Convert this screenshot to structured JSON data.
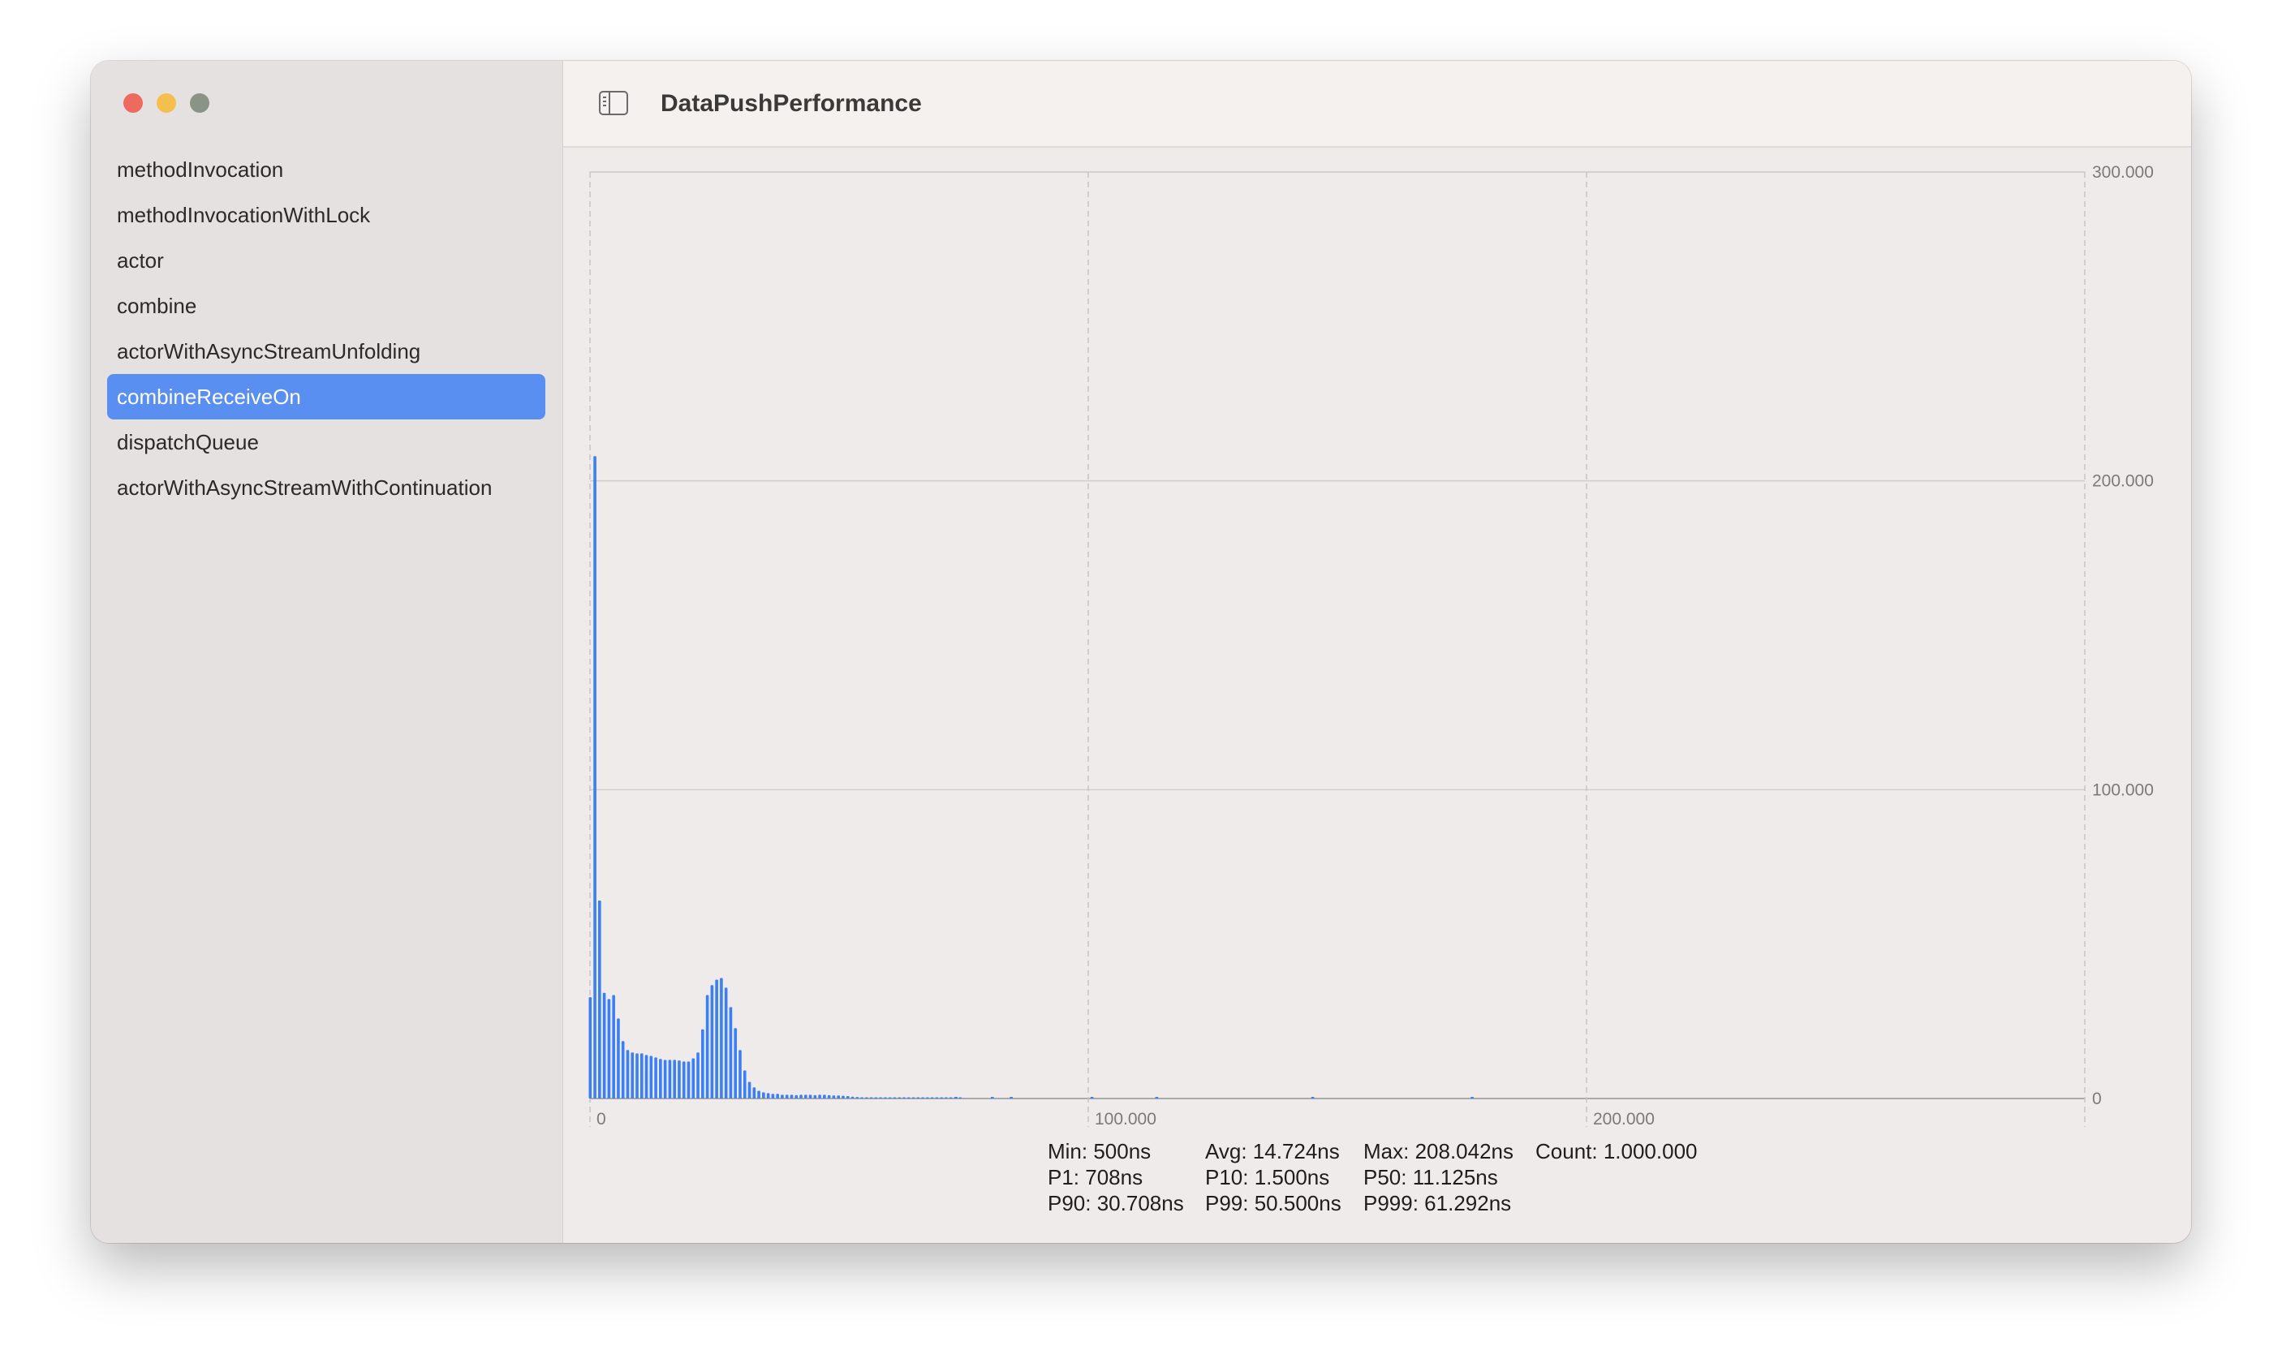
{
  "window": {
    "title": "DataPushPerformance",
    "toggle_icon": "sidebar-toggle-icon"
  },
  "sidebar": {
    "items": [
      {
        "label": "methodInvocation",
        "selected": false
      },
      {
        "label": "methodInvocationWithLock",
        "selected": false
      },
      {
        "label": "actor",
        "selected": false
      },
      {
        "label": "combine",
        "selected": false
      },
      {
        "label": "actorWithAsyncStreamUnfolding",
        "selected": false
      },
      {
        "label": "combineReceiveOn",
        "selected": true
      },
      {
        "label": "dispatchQueue",
        "selected": false
      },
      {
        "label": "actorWithAsyncStreamWithContinuation",
        "selected": false
      }
    ],
    "selection_color": "#5a8ff2"
  },
  "stats": {
    "min": "Min: 500ns",
    "avg": "Avg: 14.724ns",
    "max": "Max: 208.042ns",
    "count": "Count: 1.000.000",
    "p1": "P1: 708ns",
    "p10": "P10: 1.500ns",
    "p50": "P50: 11.125ns",
    "p90": "P90: 30.708ns",
    "p99": "P99: 50.500ns",
    "p999": "P999: 61.292ns"
  },
  "chart_data": {
    "type": "bar",
    "bar_color": "#3b7ff5",
    "xlim": [
      0,
      300000
    ],
    "ylim": [
      0,
      300000
    ],
    "x_ticks": [
      {
        "value": 0,
        "label": "0"
      },
      {
        "value": 100000,
        "label": "100.000"
      },
      {
        "value": 200000,
        "label": "200.000"
      }
    ],
    "y_ticks": [
      {
        "value": 0,
        "label": "0"
      },
      {
        "value": 100000,
        "label": "100.000"
      },
      {
        "value": 200000,
        "label": "200.000"
      },
      {
        "value": 300000,
        "label": "300.000"
      }
    ],
    "y_axis_position": "right",
    "grid": true,
    "bin_width_ns": 940,
    "values": [
      32800,
      208000,
      64100,
      34200,
      32200,
      33500,
      25900,
      18600,
      15700,
      14900,
      14600,
      14600,
      14100,
      13800,
      13300,
      12800,
      12500,
      12500,
      12500,
      12300,
      12000,
      12000,
      13000,
      14900,
      22400,
      33500,
      36700,
      38500,
      39000,
      35900,
      29600,
      22800,
      15700,
      9100,
      5400,
      3600,
      2500,
      2000,
      1750,
      1500,
      1500,
      1200,
      1200,
      1200,
      1100,
      1200,
      1200,
      1200,
      1100,
      1200,
      1200,
      1100,
      1000,
      1000,
      900,
      800,
      600,
      500,
      300,
      200,
      100,
      100,
      100,
      100,
      100,
      100,
      100,
      100,
      100,
      100,
      100,
      100,
      100,
      100,
      100,
      100,
      100,
      100,
      100,
      100
    ],
    "sparse": [
      {
        "x": 73400,
        "y": 50
      },
      {
        "x": 80700,
        "y": 50
      },
      {
        "x": 84500,
        "y": 50
      },
      {
        "x": 100700,
        "y": 50
      },
      {
        "x": 113700,
        "y": 50
      },
      {
        "x": 145000,
        "y": 50
      },
      {
        "x": 177000,
        "y": 50
      }
    ]
  }
}
